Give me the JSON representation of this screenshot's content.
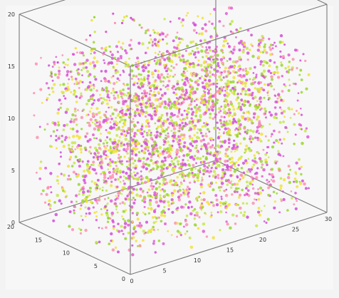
{
  "chart_data": {
    "type": "scatter",
    "projection": "3d",
    "title": "",
    "xlabel": "",
    "ylabel": "",
    "zlabel": "",
    "xlim": [
      0,
      20
    ],
    "ylim": [
      0,
      30
    ],
    "zlim": [
      0,
      20
    ],
    "x_ticks": [
      "0",
      "5",
      "10",
      "15",
      "20"
    ],
    "y_ticks": [
      "0",
      "5",
      "10",
      "15",
      "20",
      "25",
      "30"
    ],
    "z_ticks": [
      "0",
      "5",
      "10",
      "15",
      "20"
    ],
    "grid": false,
    "box": true,
    "point_colors": [
      "#e05cd6",
      "#f2e23a",
      "#9ad62f",
      "#ff8fb0",
      "#d14fd8",
      "#c6e84a"
    ],
    "cloud": {
      "x_range": [
        1,
        19
      ],
      "y_range": [
        1,
        29
      ],
      "z_range": [
        0,
        16
      ],
      "arc_top_z": 18.5
    }
  }
}
